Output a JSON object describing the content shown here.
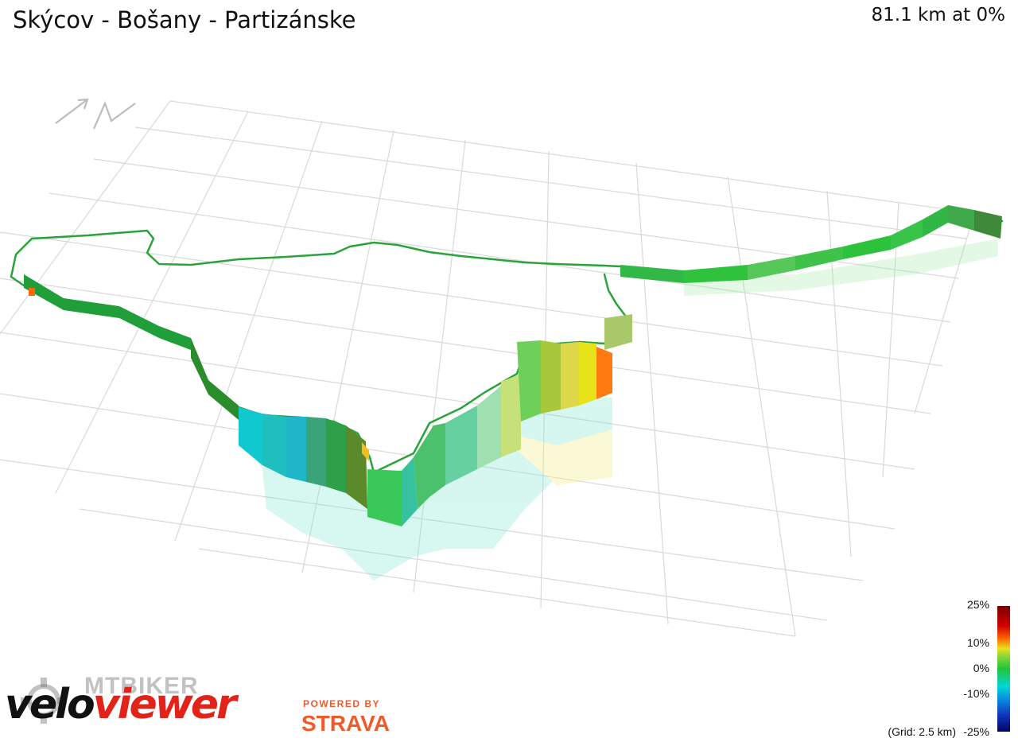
{
  "header": {
    "title": "Skýcov - Bošany - Partizánske",
    "summary": "81.1 km at 0%"
  },
  "legend": {
    "labels": [
      "25%",
      "10%",
      "0%",
      "-10%",
      "-25%"
    ],
    "grid_note": "(Grid: 2.5 km)"
  },
  "branding": {
    "watermark": "MTBIKER",
    "logo_part1": "velo",
    "logo_part2": "viewer",
    "powered_by": "POWERED BY",
    "strava": "STRAVA"
  },
  "icons": {
    "north_arrow": "north-arrow-icon",
    "gear": "gear-icon"
  },
  "colors": {
    "flat": "#22c43a",
    "descent": "#00d6d6",
    "climb": "#e8e21a",
    "steep": "#ff6a00",
    "grid": "#d9d9d9",
    "brand_red": "#e2231a",
    "strava_orange": "#f05a28"
  }
}
